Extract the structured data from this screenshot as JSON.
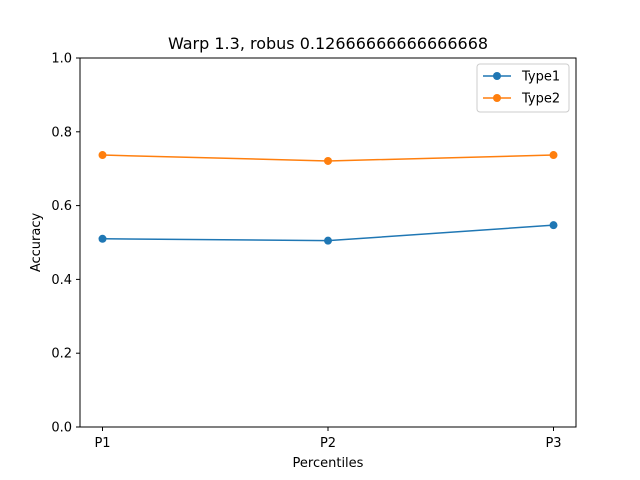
{
  "chart_data": {
    "type": "line",
    "title": "Warp 1.3, robus 0.12666666666666668",
    "xlabel": "Percentiles",
    "ylabel": "Accuracy",
    "categories": [
      "P1",
      "P2",
      "P3"
    ],
    "ylim": [
      0.0,
      1.0
    ],
    "yticks": [
      "0.0",
      "0.2",
      "0.4",
      "0.6",
      "0.8",
      "1.0"
    ],
    "grid": false,
    "legend_position": "top-right",
    "series": [
      {
        "name": "Type1",
        "color": "#1f77b4",
        "values": [
          0.51,
          0.505,
          0.547
        ]
      },
      {
        "name": "Type2",
        "color": "#ff7f0e",
        "values": [
          0.737,
          0.721,
          0.737
        ]
      }
    ]
  }
}
